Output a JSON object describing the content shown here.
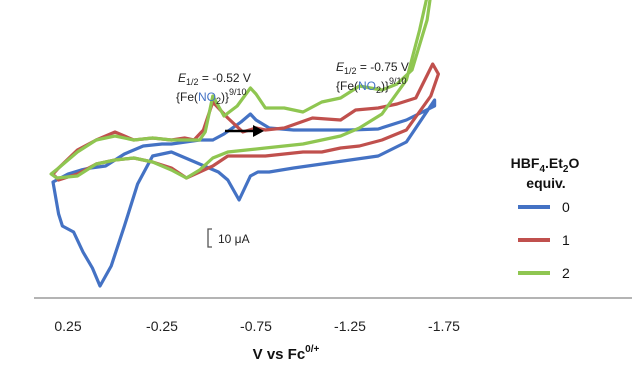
{
  "chart_data": {
    "type": "line",
    "title": "",
    "xlabel": "V vs Fc",
    "xlabel_sup": "0/+",
    "ylabel": "",
    "x_reversed": true,
    "xlim": [
      0.45,
      -1.78
    ],
    "x_ticks": [
      {
        "value": 0.25,
        "label": "0.25"
      },
      {
        "value": -0.25,
        "label": "-0.25"
      },
      {
        "value": -0.75,
        "label": "-0.75"
      },
      {
        "value": -1.25,
        "label": "-1.25"
      },
      {
        "value": -1.75,
        "label": "-1.75"
      }
    ],
    "grid": false,
    "scale_bar": {
      "label": "10 μA",
      "value_uA": 10
    },
    "annotations": [
      {
        "e_main": "E",
        "e_sub": "1/2",
        "value": " = -0.52 V",
        "species_pre": "{Fe(",
        "species_no": "NO",
        "species_sub": "2",
        "species_post": ")}",
        "species_sup": "9/10"
      },
      {
        "e_main": "E",
        "e_sub": "1/2",
        "value": " = -0.75 V",
        "species_pre": "{Fe(",
        "species_no": "NO",
        "species_sub": "2",
        "species_post": ")}",
        "species_sup": "9/10"
      }
    ],
    "legend": {
      "title_main": "HBF",
      "title_sub1": "4",
      "title_mid": ".Et",
      "title_sub2": "2",
      "title_end": "O",
      "title_line2": "equiv.",
      "placement": "right"
    },
    "colors": {
      "blue": "#4472c4",
      "red": "#c0504d",
      "green": "#8fc651",
      "no_text": "#4472c4"
    },
    "series": [
      {
        "name": "0",
        "color": "#4472c4",
        "x": [
          -0.52,
          -0.45,
          -0.3,
          -0.25,
          -0.15,
          -0.05,
          0.05,
          0.13,
          0.18,
          0.25,
          0.33,
          0.3,
          0.28,
          0.22,
          0.17,
          0.12,
          0.08,
          0.02,
          -0.05,
          -0.12,
          -0.2,
          -0.3,
          -0.45,
          -0.55,
          -0.6,
          -0.66,
          -0.72,
          -0.76,
          -0.82,
          -0.95,
          -1.1,
          -1.25,
          -1.4,
          -1.55,
          -1.7,
          -1.7,
          -1.55,
          -1.4,
          -1.25,
          -1.1,
          -0.95,
          -0.82,
          -0.75,
          -0.72,
          -0.67,
          -0.58,
          -0.52
        ],
        "y": [
          0.0,
          0.0,
          -0.2,
          -0.2,
          -0.3,
          -0.7,
          -1.3,
          -1.4,
          -1.5,
          -1.7,
          -2.1,
          -3.7,
          -4.3,
          -4.6,
          -5.6,
          -6.4,
          -7.3,
          -6.3,
          -4.3,
          -2.2,
          -0.8,
          -0.6,
          -1.2,
          -1.6,
          -2.0,
          -3.0,
          -1.8,
          -1.6,
          -1.6,
          -1.4,
          -1.2,
          -1.0,
          -0.8,
          -0.1,
          2.0,
          1.7,
          1.0,
          0.55,
          0.5,
          0.5,
          0.5,
          0.6,
          1.0,
          1.3,
          0.9,
          0.3,
          0.0
        ]
      },
      {
        "name": "1",
        "color": "#c0504d",
        "x": [
          -0.42,
          -0.37,
          -0.3,
          -0.2,
          -0.1,
          0.0,
          0.1,
          0.2,
          0.3,
          0.33,
          0.3,
          0.2,
          0.1,
          0.0,
          -0.1,
          -0.2,
          -0.3,
          -0.38,
          -0.45,
          -0.52,
          -0.6,
          -0.7,
          -0.8,
          -0.9,
          -1.0,
          -1.1,
          -1.2,
          -1.3,
          -1.42,
          -1.55,
          -1.68,
          -1.72,
          -1.69,
          -1.6,
          -1.5,
          -1.4,
          -1.28,
          -1.2,
          -1.05,
          -0.9,
          -0.8,
          -0.75,
          -0.68,
          -0.6,
          -0.52,
          -0.47,
          -0.42
        ],
        "y": [
          0.0,
          0.1,
          0.0,
          0.1,
          0.0,
          0.4,
          0.0,
          -0.5,
          -1.4,
          -1.7,
          -2.0,
          -1.7,
          -1.2,
          -1.0,
          -0.9,
          -1.1,
          -1.4,
          -1.9,
          -1.6,
          -1.3,
          -0.8,
          -0.8,
          -0.8,
          -0.7,
          -0.6,
          -0.6,
          -0.4,
          -0.3,
          0.0,
          0.5,
          2.2,
          3.3,
          3.8,
          2.1,
          1.8,
          1.6,
          1.5,
          1.0,
          1.1,
          0.6,
          0.5,
          0.6,
          0.4,
          1.1,
          1.9,
          0.5,
          0.0
        ]
      },
      {
        "name": "2",
        "color": "#8fc651",
        "x": [
          -0.45,
          -0.3,
          -0.2,
          -0.1,
          0.0,
          0.1,
          0.2,
          0.3,
          0.34,
          0.31,
          0.2,
          0.1,
          0.0,
          -0.1,
          -0.2,
          -0.3,
          -0.38,
          -0.45,
          -0.52,
          -0.6,
          -0.7,
          -0.8,
          -0.9,
          -1.0,
          -1.1,
          -1.2,
          -1.3,
          -1.42,
          -1.55,
          -1.62,
          -1.68,
          -1.72,
          -1.7,
          -1.66,
          -1.58,
          -1.5,
          -1.42,
          -1.3,
          -1.2,
          -1.1,
          -1.0,
          -0.9,
          -0.8,
          -0.75,
          -0.72,
          -0.65,
          -0.58,
          -0.52,
          -0.48,
          -0.45
        ],
        "y": [
          0.0,
          0.0,
          0.1,
          0.0,
          0.2,
          0.0,
          -0.6,
          -1.4,
          -1.7,
          -1.9,
          -1.8,
          -1.2,
          -1.0,
          -0.9,
          -1.1,
          -1.5,
          -1.9,
          -1.5,
          -0.9,
          -0.6,
          -0.5,
          -0.4,
          -0.3,
          -0.2,
          0.0,
          0.2,
          0.6,
          1.3,
          3.0,
          5.5,
          8.0,
          9.3,
          8.6,
          6.0,
          3.5,
          2.8,
          2.5,
          2.7,
          2.1,
          1.9,
          1.4,
          1.6,
          1.6,
          2.3,
          2.6,
          1.7,
          1.2,
          2.2,
          0.4,
          0.0
        ]
      }
    ]
  }
}
